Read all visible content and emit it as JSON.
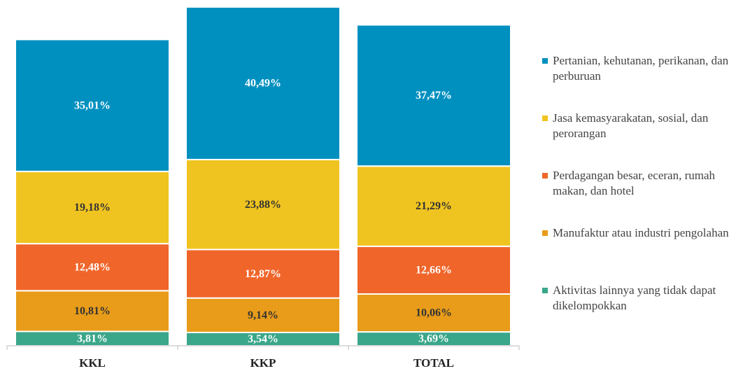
{
  "chart_data": {
    "type": "stacked_bar",
    "categories": [
      "KKL",
      "KKP",
      "TOTAL"
    ],
    "series": [
      {
        "name": "Aktivitas lainnya yang tidak dapat dikelompokkan",
        "color": "#3aa68a",
        "label_color": "#ffffff",
        "values": [
          3.81,
          3.54,
          3.69
        ],
        "value_labels": [
          "3,81%",
          "3,54%",
          "3,69%"
        ]
      },
      {
        "name": "Manufaktur atau industri pengolahan",
        "color": "#e89c1a",
        "label_color": "#333333",
        "values": [
          10.81,
          9.14,
          10.06
        ],
        "value_labels": [
          "10,81%",
          "9,14%",
          "10,06%"
        ]
      },
      {
        "name": "Perdagangan besar, eceran, rumah makan, dan hotel",
        "color": "#f0652a",
        "label_color": "#ffffff",
        "values": [
          12.48,
          12.87,
          12.66
        ],
        "value_labels": [
          "12,48%",
          "12,87%",
          "12,66%"
        ]
      },
      {
        "name": "Jasa kemasyarakatan, sosial, dan perorangan",
        "color": "#f0c420",
        "label_color": "#333333",
        "values": [
          19.18,
          23.88,
          21.29
        ],
        "value_labels": [
          "19,18%",
          "23,88%",
          "21,29%"
        ]
      },
      {
        "name": "Pertanian, kehutanan, perikanan, dan perburuan",
        "color": "#0090c0",
        "label_color": "#ffffff",
        "values": [
          35.01,
          40.49,
          37.47
        ],
        "value_labels": [
          "35,01%",
          "40,49%",
          "37,47%"
        ]
      }
    ],
    "legend": "right"
  }
}
